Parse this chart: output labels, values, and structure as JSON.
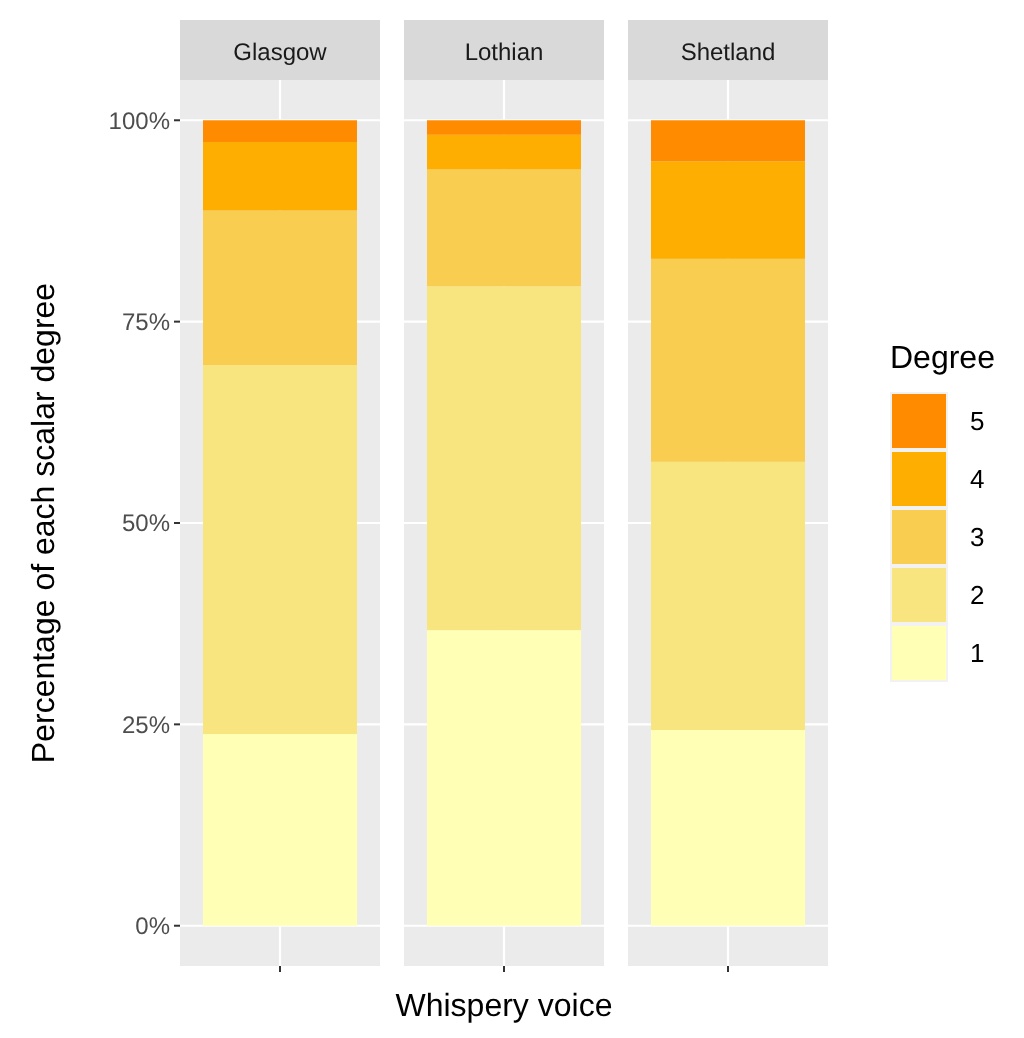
{
  "chart_data": {
    "type": "bar",
    "xlabel": "Whispery voice",
    "ylabel": "Percentage of each scalar degree",
    "categories": [
      "Glasgow",
      "Lothian",
      "Shetland"
    ],
    "stacked": true,
    "ylim": [
      -5,
      105
    ],
    "yticks": [
      {
        "value": 0,
        "label": "0%"
      },
      {
        "value": 25,
        "label": "25%"
      },
      {
        "value": 50,
        "label": "50%"
      },
      {
        "value": 75,
        "label": "75%"
      },
      {
        "value": 100,
        "label": "100%"
      }
    ],
    "grid": true,
    "legend": "right",
    "legend_title": "Degree",
    "series": [
      {
        "name": "1",
        "color": "#ffffb5",
        "values": [
          23.8,
          36.7,
          24.3
        ]
      },
      {
        "name": "2",
        "color": "#f8e57f",
        "values": [
          45.8,
          42.7,
          33.3
        ]
      },
      {
        "name": "3",
        "color": "#f9cd4f",
        "values": [
          19.2,
          14.5,
          25.2
        ]
      },
      {
        "name": "4",
        "color": "#feae00",
        "values": [
          8.5,
          4.3,
          12.1
        ]
      },
      {
        "name": "5",
        "color": "#ff8b00",
        "values": [
          2.7,
          1.8,
          5.1
        ]
      }
    ]
  }
}
